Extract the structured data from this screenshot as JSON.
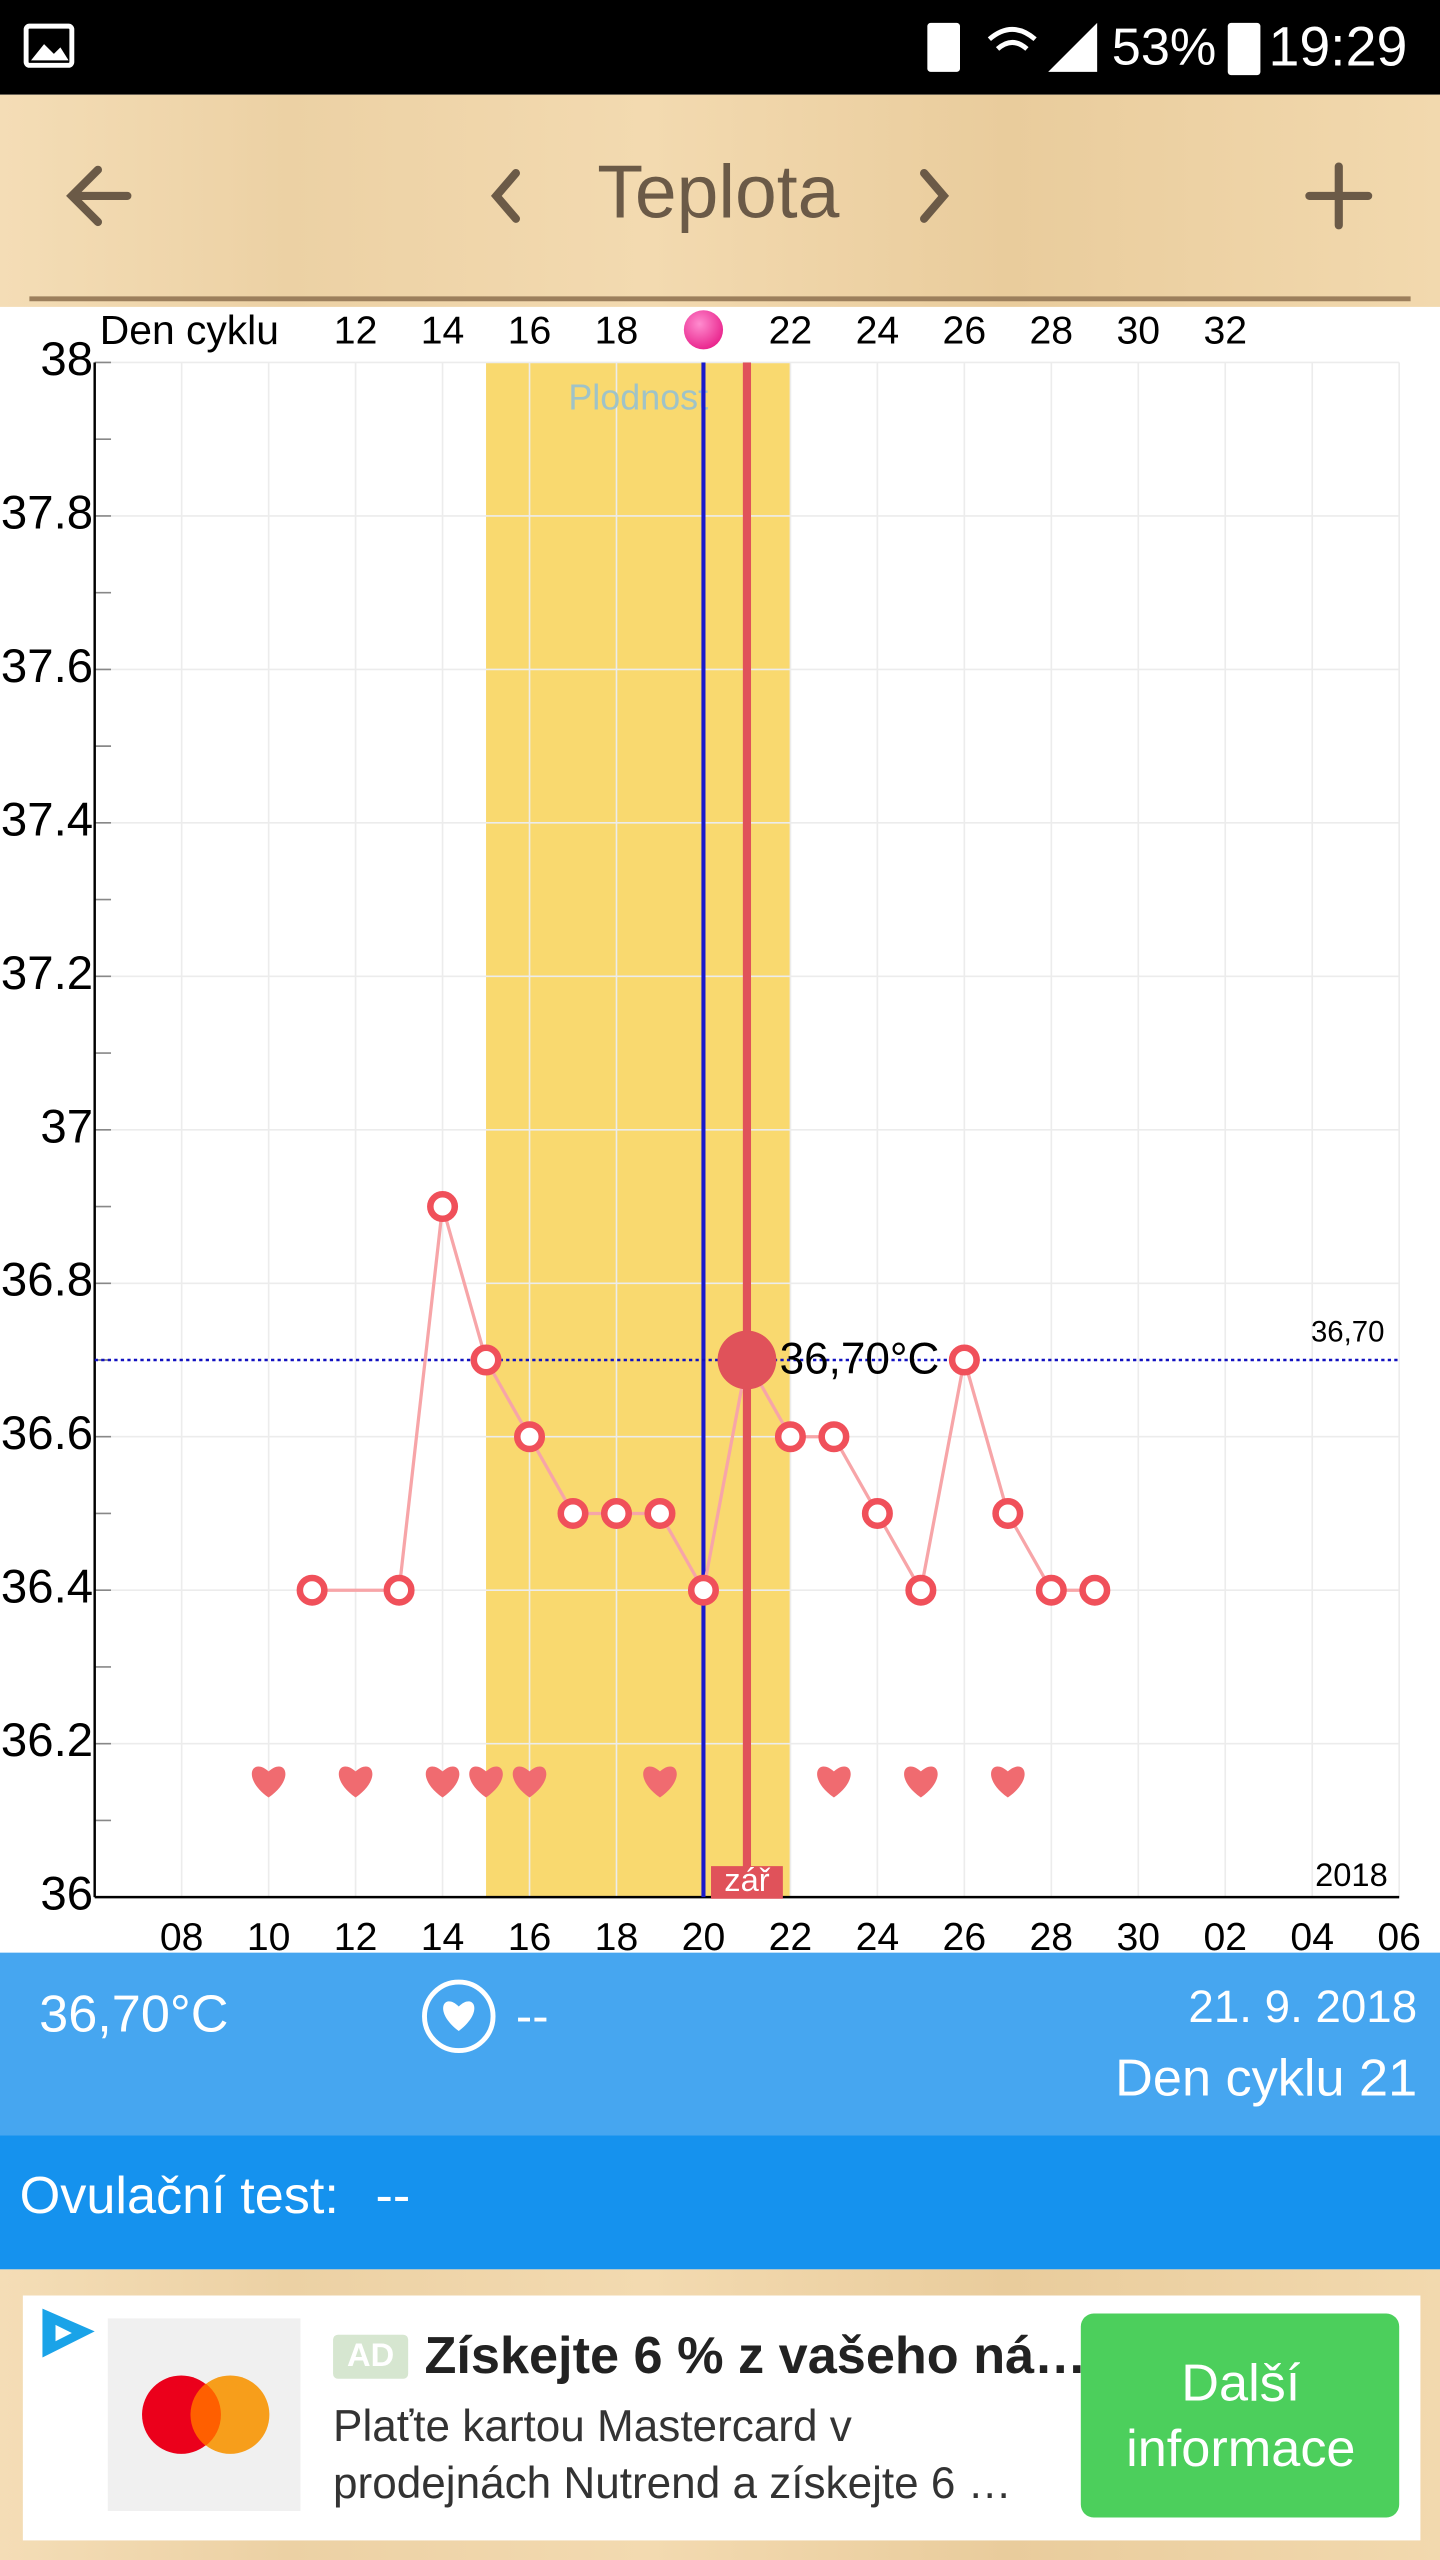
{
  "status_bar": {
    "battery": "53%",
    "time": "19:29"
  },
  "header": {
    "title": "Teplota"
  },
  "chart_data": {
    "type": "line",
    "x_label_top": "Den cyklu",
    "x": [
      11,
      13,
      14,
      15,
      16,
      17,
      18,
      19,
      20,
      21,
      22,
      23,
      24,
      25,
      26,
      27,
      28,
      29
    ],
    "values": [
      36.4,
      36.4,
      36.9,
      36.7,
      36.6,
      36.5,
      36.5,
      36.5,
      36.4,
      36.7,
      36.6,
      36.6,
      36.5,
      36.4,
      36.7,
      36.5,
      36.4,
      36.4
    ],
    "color": "#f0505a",
    "line_color": "#f7a5a8",
    "xlim": [
      6,
      36
    ],
    "xticks": [
      {
        "value": 8,
        "label": "08"
      },
      10,
      12,
      14,
      16,
      18,
      20,
      22,
      24,
      26,
      28,
      30,
      {
        "value": 32,
        "label": "02"
      },
      {
        "value": 34,
        "label": "04"
      },
      {
        "value": 36,
        "label": "06"
      }
    ],
    "x2ticks": [
      12,
      14,
      16,
      18,
      22,
      24,
      26,
      28,
      30,
      32
    ],
    "ylim": [
      36,
      38
    ],
    "yticks": [
      36,
      36.2,
      36.4,
      36.6,
      36.8,
      37,
      37.2,
      37.4,
      37.6,
      37.8,
      38
    ],
    "grid": true,
    "heart_days": [
      10,
      12,
      14,
      15,
      16,
      19,
      23,
      25,
      27
    ],
    "fertile_window": [
      15,
      22
    ],
    "fertile_label": "Plodnost",
    "ovulation_day": 20,
    "selected_day": 21,
    "selected_label": "36,70°C",
    "month_label": "zář",
    "reference_line": {
      "value": 36.7,
      "label": "36,70"
    },
    "year_label": "2018"
  },
  "info": {
    "temperature": "36,70°C",
    "intercourse": "--",
    "date": "21. 9. 2018",
    "cycle_day": "Den cyklu 21"
  },
  "ovulation_test": {
    "label": "Ovulační test:",
    "value": "--"
  },
  "ad": {
    "badge": "AD",
    "title": "Získejte 6 % z vašeho ná…",
    "body": [
      "Plaťte kartou Mastercard v",
      "prodejnách Nutrend a získejte 6 …"
    ],
    "button": [
      "Další",
      "informace"
    ]
  }
}
